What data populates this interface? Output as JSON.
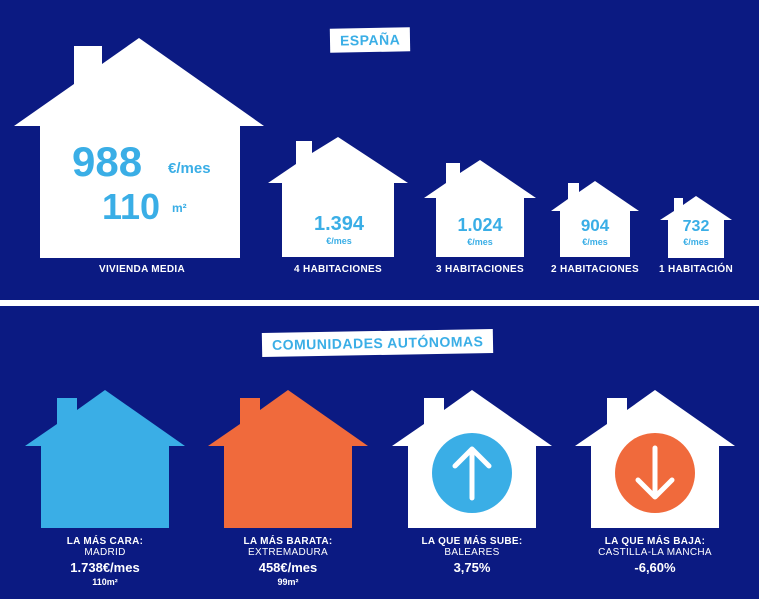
{
  "spain": {
    "title": "ESPAÑA",
    "main": {
      "price": "988",
      "price_unit": "€/mes",
      "area": "110",
      "area_unit": "m²",
      "label": "VIVIENDA MEDIA"
    },
    "houses": [
      {
        "price": "1.394",
        "unit": "€/mes",
        "label": "4 HABITACIONES"
      },
      {
        "price": "1.024",
        "unit": "€/mes",
        "label": "3 HABITACIONES"
      },
      {
        "price": "904",
        "unit": "€/mes",
        "label": "2 HABITACIONES"
      },
      {
        "price": "732",
        "unit": "€/mes",
        "label": "1 HABITACIÓN"
      }
    ]
  },
  "communities": {
    "title": "COMUNIDADES AUTÓNOMAS",
    "items": [
      {
        "title": "LA MÁS CARA:",
        "region": "MADRID",
        "value": "1.738€/mes",
        "area": "110m²",
        "color": "#3aaee6",
        "icon": "none"
      },
      {
        "title": "LA MÁS BARATA:",
        "region": "EXTREMADURA",
        "value": "458€/mes",
        "area": "99m²",
        "color": "#f06a3c",
        "icon": "none"
      },
      {
        "title": "LA QUE MÁS SUBE:",
        "region": "BALEARES",
        "value": "3,75%",
        "area": "",
        "color": "#ffffff",
        "icon": "arrow-up-icon",
        "icon_color": "#3aaee6"
      },
      {
        "title": "LA QUE MÁS BAJA:",
        "region": "CASTILLA-LA MANCHA",
        "value": "-6,60%",
        "area": "",
        "color": "#ffffff",
        "icon": "arrow-down-icon",
        "icon_color": "#f06a3c"
      }
    ]
  }
}
